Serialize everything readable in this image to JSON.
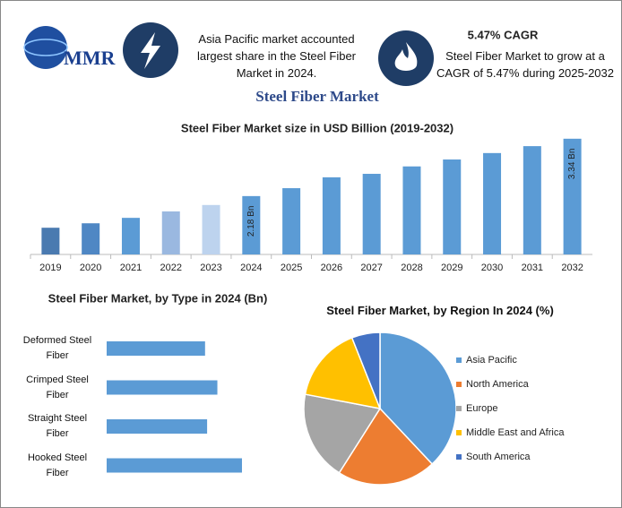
{
  "header": {
    "logo_text": "MMR",
    "info_left": "Asia Pacific market accounted largest share in the Steel Fiber Market in 2024.",
    "cagr_title": "5.47% CAGR",
    "info_right": "Steel Fiber Market to grow at a CAGR of 5.47% during 2025-2032"
  },
  "title": "Steel Fiber Market",
  "chart_data": [
    {
      "type": "bar",
      "title": "Steel Fiber Market size in USD Billion (2019-2032)",
      "categories": [
        "2019",
        "2020",
        "2021",
        "2022",
        "2023",
        "2024",
        "2025",
        "2026",
        "2027",
        "2028",
        "2029",
        "2030",
        "2031",
        "2032"
      ],
      "values": [
        1.54,
        1.63,
        1.74,
        1.87,
        2.0,
        2.18,
        2.34,
        2.56,
        2.63,
        2.78,
        2.92,
        3.05,
        3.19,
        3.34
      ],
      "value_labels": [
        null,
        null,
        null,
        null,
        null,
        "2.18 Bn",
        null,
        null,
        null,
        null,
        null,
        null,
        null,
        "3.34 Bn"
      ],
      "colors": [
        "#4a7ab0",
        "#4f87c4",
        "#5b9bd5",
        "#9ab8e0",
        "#bdd3ee",
        "#5b9bd5",
        "#5b9bd5",
        "#5b9bd5",
        "#5b9bd5",
        "#5b9bd5",
        "#5b9bd5",
        "#5b9bd5",
        "#5b9bd5",
        "#5b9bd5"
      ],
      "ylim": [
        1,
        3.5
      ]
    },
    {
      "type": "hbar",
      "title": "Steel Fiber Market, by Type in 2024 (Bn)",
      "categories": [
        "Deformed Steel Fiber",
        "Crimped Steel Fiber",
        "Straight Steel Fiber",
        "Hooked Steel Fiber"
      ],
      "values": [
        0.48,
        0.54,
        0.49,
        0.66
      ],
      "color": "#5b9bd5",
      "xlim": [
        0,
        0.8
      ]
    },
    {
      "type": "pie",
      "title": "Steel Fiber Market, by Region In 2024 (%)",
      "categories": [
        "Asia Pacific",
        "North America",
        "Europe",
        "Middle East and Africa",
        "South America"
      ],
      "values": [
        38,
        21,
        19,
        16,
        6
      ],
      "colors": [
        "#5b9bd5",
        "#ed7d31",
        "#a5a5a5",
        "#ffc000",
        "#4472c4"
      ]
    }
  ]
}
